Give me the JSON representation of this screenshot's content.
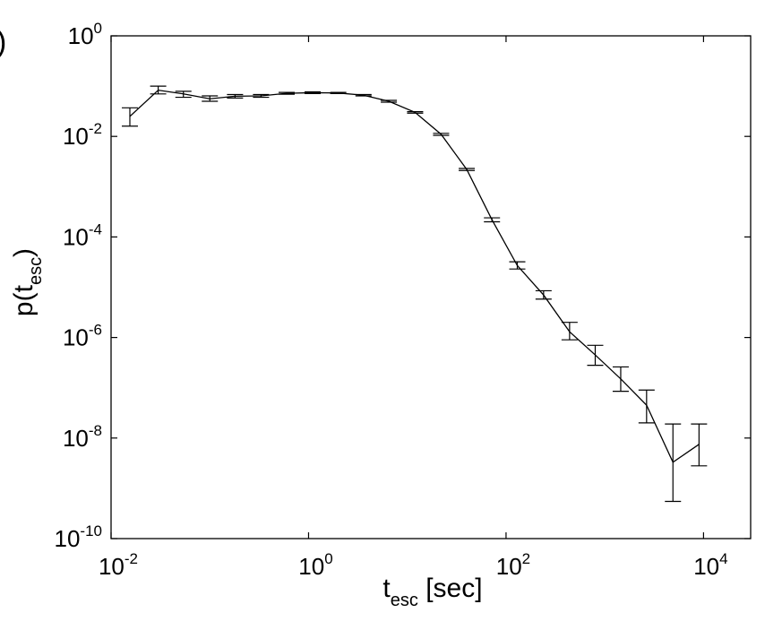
{
  "chart_data": {
    "type": "line",
    "title": "",
    "panel_label": ")",
    "xlabel": {
      "main": "t",
      "sub": "esc",
      "unit": " [sec]"
    },
    "ylabel": {
      "main": "p(t",
      "sub": "esc",
      "close": ")"
    },
    "xscale": "log",
    "yscale": "log",
    "xlim": [
      0.01,
      30000
    ],
    "ylim": [
      1e-10,
      1
    ],
    "grid": false,
    "legend": "none",
    "x_ticks": [
      {
        "base": "10",
        "exp": "-2",
        "value": 0.01
      },
      {
        "base": "10",
        "exp": "0",
        "value": 1
      },
      {
        "base": "10",
        "exp": "2",
        "value": 100
      },
      {
        "base": "10",
        "exp": "4",
        "value": 10000
      }
    ],
    "y_ticks": [
      {
        "base": "10",
        "exp": "0",
        "value": 1
      },
      {
        "base": "10",
        "exp": "-2",
        "value": 0.01
      },
      {
        "base": "10",
        "exp": "-4",
        "value": 0.0001
      },
      {
        "base": "10",
        "exp": "-6",
        "value": 1e-06
      },
      {
        "base": "10",
        "exp": "-8",
        "value": 1e-08
      },
      {
        "base": "10",
        "exp": "-10",
        "value": 1e-10
      }
    ],
    "series": [
      {
        "color": "#000000",
        "points": [
          {
            "x": 0.0155,
            "y": 0.025,
            "lo": 0.016,
            "hi": 0.037
          },
          {
            "x": 0.03,
            "y": 0.083,
            "lo": 0.07,
            "hi": 0.1
          },
          {
            "x": 0.054,
            "y": 0.07,
            "lo": 0.06,
            "hi": 0.079
          },
          {
            "x": 0.1,
            "y": 0.056,
            "lo": 0.05,
            "hi": 0.064
          },
          {
            "x": 0.18,
            "y": 0.063,
            "lo": 0.058,
            "hi": 0.068
          },
          {
            "x": 0.33,
            "y": 0.064,
            "lo": 0.06,
            "hi": 0.068
          },
          {
            "x": 0.6,
            "y": 0.072,
            "lo": 0.069,
            "hi": 0.075
          },
          {
            "x": 1.1,
            "y": 0.074,
            "lo": 0.071,
            "hi": 0.077
          },
          {
            "x": 2.0,
            "y": 0.073,
            "lo": 0.071,
            "hi": 0.075
          },
          {
            "x": 3.6,
            "y": 0.066,
            "lo": 0.064,
            "hi": 0.068
          },
          {
            "x": 6.5,
            "y": 0.05,
            "lo": 0.048,
            "hi": 0.052
          },
          {
            "x": 12,
            "y": 0.03,
            "lo": 0.029,
            "hi": 0.031
          },
          {
            "x": 22,
            "y": 0.011,
            "lo": 0.0105,
            "hi": 0.0115
          },
          {
            "x": 40,
            "y": 0.0022,
            "lo": 0.0021,
            "hi": 0.0023
          },
          {
            "x": 72,
            "y": 0.00022,
            "lo": 0.0002,
            "hi": 0.00024
          },
          {
            "x": 130,
            "y": 2.7e-05,
            "lo": 2.3e-05,
            "hi": 3.2e-05
          },
          {
            "x": 240,
            "y": 7e-06,
            "lo": 5.8e-06,
            "hi": 8.5e-06
          },
          {
            "x": 440,
            "y": 1.3e-06,
            "lo": 9e-07,
            "hi": 2e-06
          },
          {
            "x": 800,
            "y": 4.5e-07,
            "lo": 2.8e-07,
            "hi": 7e-07
          },
          {
            "x": 1450,
            "y": 1.5e-07,
            "lo": 8.5e-08,
            "hi": 2.6e-07
          },
          {
            "x": 2650,
            "y": 4.5e-08,
            "lo": 2e-08,
            "hi": 9e-08
          },
          {
            "x": 4900,
            "y": 3.3e-09,
            "lo": 5.5e-10,
            "hi": 1.9e-08
          },
          {
            "x": 9000,
            "y": 7.5e-09,
            "lo": 2.8e-09,
            "hi": 1.9e-08
          }
        ]
      }
    ]
  }
}
